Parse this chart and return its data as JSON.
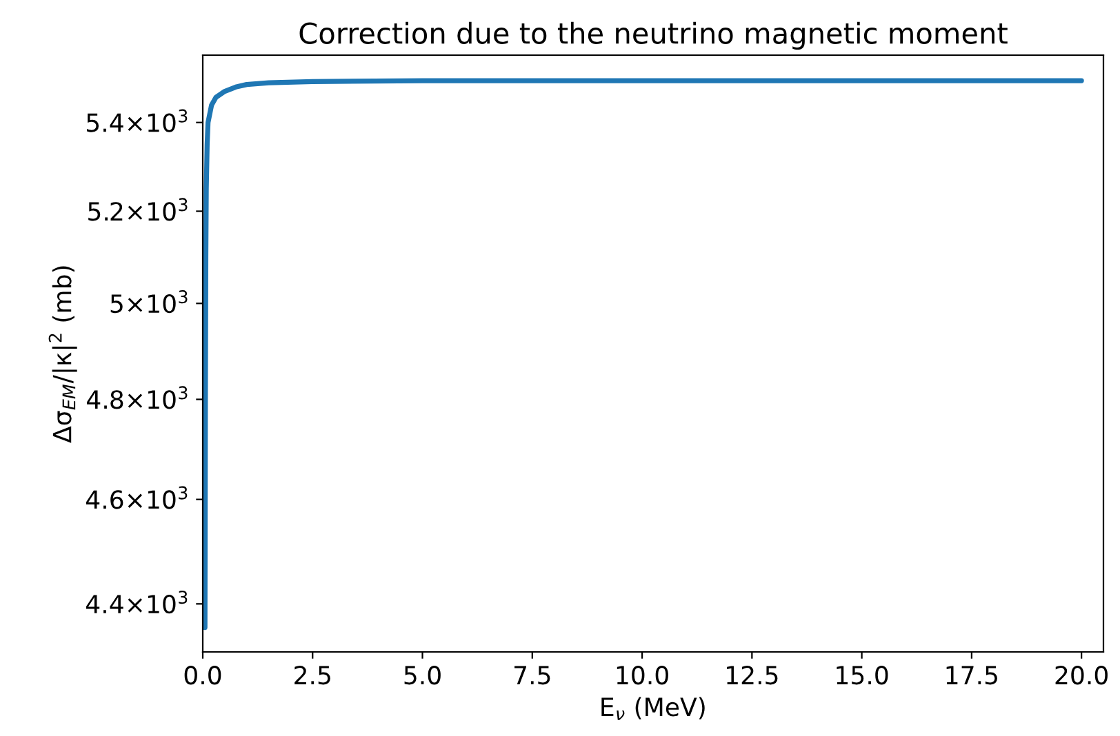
{
  "chart_data": {
    "type": "line",
    "title": "Correction due to the neutrino magnetic moment",
    "xlabel": "E$_{ν}$ (MeV)",
    "ylabel": "Δσ$_{EM}$/|κ|$^{2}$ (mb)",
    "log": "y",
    "grid": false,
    "marker": "none",
    "line_style": "solid",
    "xlim": [
      0,
      20.5
    ],
    "ylim": [
      4311,
      5557
    ],
    "xticks": [
      {
        "value": 0,
        "label": "0.0"
      },
      2.5,
      {
        "value": 5,
        "label": "5.0"
      },
      7.5,
      {
        "value": 10,
        "label": "10.0"
      },
      12.5,
      {
        "value": 15,
        "label": "15.0"
      },
      17.5,
      {
        "value": 20,
        "label": "20.0"
      }
    ],
    "yticks": [
      {
        "value": 4400,
        "label": "4.4×10$^{3}$"
      },
      {
        "value": 4600,
        "label": "4.6×10$^{3}$"
      },
      {
        "value": 4800,
        "label": "4.8×10$^{3}$"
      },
      {
        "value": 5000,
        "label": "5×10$^{3}$"
      },
      {
        "value": 5200,
        "label": "5.2×10$^{3}$"
      },
      {
        "value": 5400,
        "label": "5.4×10$^{3}$"
      }
    ],
    "series": [
      {
        "color": "#1f77b4",
        "x": [
          0.05,
          0.06,
          0.07,
          0.08,
          0.1,
          0.12,
          0.2,
          0.3,
          0.5,
          0.75,
          1,
          1.5,
          2.5,
          5,
          10,
          20
        ],
        "values": [
          4356,
          4800,
          5100,
          5250,
          5350,
          5400,
          5440,
          5458,
          5472,
          5482,
          5488,
          5492,
          5495,
          5497,
          5497,
          5497
        ]
      }
    ]
  }
}
